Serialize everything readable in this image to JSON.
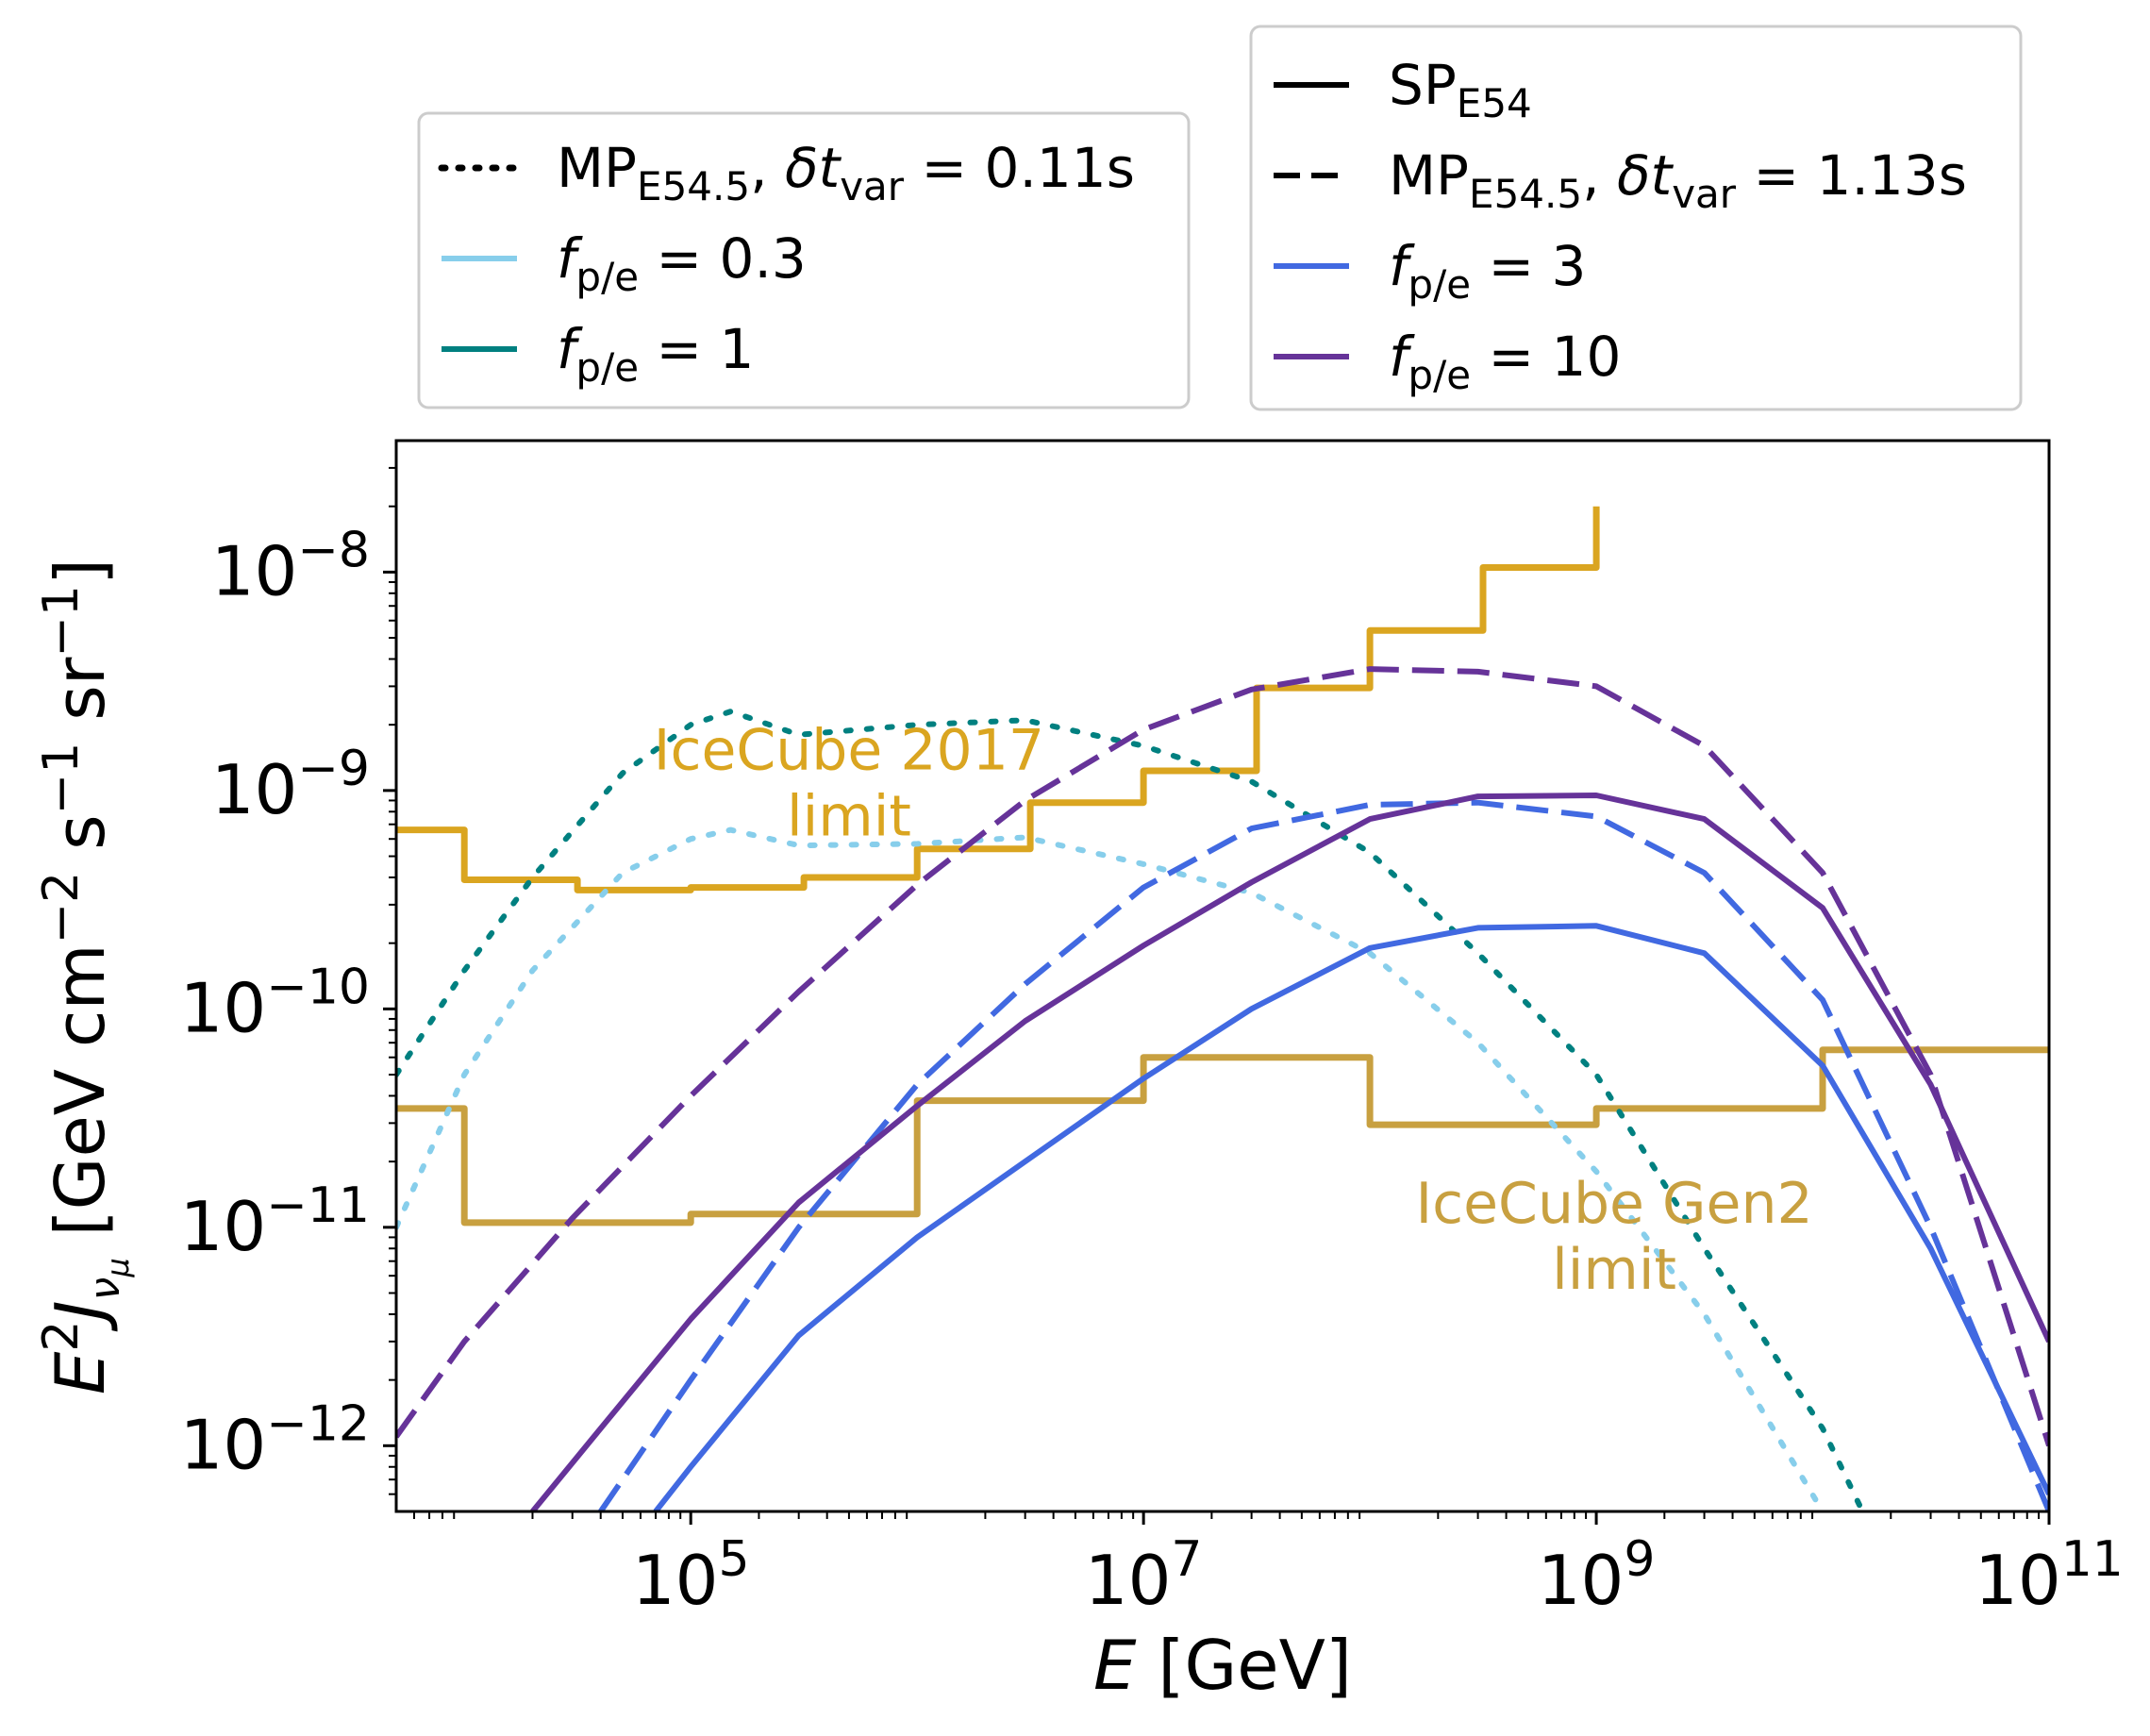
{
  "chart_data": {
    "type": "line",
    "xscale": "log",
    "yscale": "log",
    "xlim": [
      5000,
      100000000000
    ],
    "ylim": [
      5e-13,
      4e-08
    ],
    "xticks": [
      {
        "value": 100000,
        "base": "10",
        "exp": "5"
      },
      {
        "value": 10000000,
        "base": "10",
        "exp": "7"
      },
      {
        "value": 1000000000,
        "base": "10",
        "exp": "9"
      },
      {
        "value": 100000000000,
        "base": "10",
        "exp": "11"
      }
    ],
    "yticks": [
      {
        "value": 1e-12,
        "base": "10",
        "exp": "−12"
      },
      {
        "value": 1e-11,
        "base": "10",
        "exp": "−11"
      },
      {
        "value": 1e-10,
        "base": "10",
        "exp": "−10"
      },
      {
        "value": 1e-09,
        "base": "10",
        "exp": "−9"
      },
      {
        "value": 1e-08,
        "base": "10",
        "exp": "−8"
      }
    ],
    "xlabel": {
      "var": "E",
      "rest": " [GeV]"
    },
    "ylabel": {
      "E2": "E",
      "two": "2",
      "J": "J",
      "nu": "ν",
      "mu": "μ",
      "rest": " [GeV cm",
      "m2": "−2",
      "s": " s",
      "m1a": "−1",
      "sr": " sr",
      "m1b": "−1",
      "close": "]"
    },
    "grid": false,
    "legend_placement": "above plot, two boxes",
    "legends": {
      "left": [
        {
          "style": "dotted",
          "color": "#000000",
          "base": "MP",
          "sub": "E54.5",
          "tail": ", ",
          "delta": "δt",
          "dsub": "var",
          "eq": " = 0.11s"
        },
        {
          "style": "solid",
          "color": "#87ceeb",
          "f": "f",
          "fsub": "p/e",
          "eq": " = 0.3"
        },
        {
          "style": "solid",
          "color": "#008080",
          "f": "f",
          "fsub": "p/e",
          "eq": " = 1"
        }
      ],
      "right": [
        {
          "style": "solid",
          "color": "#000000",
          "base": "SP",
          "sub": "E54"
        },
        {
          "style": "dashed",
          "color": "#000000",
          "base": "MP",
          "sub": "E54.5",
          "tail": ", ",
          "delta": "δt",
          "dsub": "var",
          "eq": " = 1.13s"
        },
        {
          "style": "solid",
          "color": "#4169e1",
          "f": "f",
          "fsub": "p/e",
          "eq": " = 3"
        },
        {
          "style": "solid",
          "color": "#663399",
          "f": "f",
          "fsub": "p/e",
          "eq": " = 10"
        }
      ]
    },
    "annotations": [
      {
        "lines": [
          "IceCube 2017",
          "limit"
        ],
        "color": "#daa520",
        "x": 500000,
        "y": 1.25e-09
      },
      {
        "lines": [
          "IceCube Gen2",
          "limit"
        ],
        "color": "#c8a040",
        "x": 1200000000,
        "y": 1.05e-11
      }
    ],
    "series": [
      {
        "key": "icecube2017",
        "color": "#daa520",
        "dash": "solid",
        "width": 7,
        "step": true,
        "edges": [
          5000,
          10000,
          31600,
          100000,
          316000,
          1000000,
          3160000,
          10000000,
          31600000,
          100000000,
          316000000,
          1000000000
        ],
        "values": [
          6.6e-10,
          3.9e-10,
          3.5e-10,
          3.6e-10,
          4e-10,
          5.4e-10,
          8.8e-10,
          1.23e-09,
          2.95e-09,
          5.4e-09,
          1.05e-08,
          2e-08
        ]
      },
      {
        "key": "gen2",
        "color": "#c8a040",
        "dash": "solid",
        "width": 7,
        "step": true,
        "edges": [
          5000,
          10000,
          100000,
          1000000,
          10000000,
          100000000,
          1000000000,
          10000000000,
          100000000000
        ],
        "values": [
          3.5e-11,
          1.05e-11,
          1.15e-11,
          3.8e-11,
          6e-11,
          2.95e-11,
          3.5e-11,
          6.5e-11
        ]
      },
      {
        "key": "mp011_fpe03",
        "color": "#87ceeb",
        "dash": "dotted",
        "x": [
          5000,
          10000,
          20000,
          50000,
          100000,
          150000,
          300000,
          1000000,
          3000000,
          10000000,
          30000000,
          100000000,
          300000000,
          1000000000,
          3000000000,
          10000000000
        ],
        "y": [
          1e-11,
          5e-11,
          1.5e-10,
          4.2e-10,
          6e-10,
          6.6e-10,
          5.6e-10,
          5.7e-10,
          6.1e-10,
          4.6e-10,
          3.4e-10,
          1.8e-10,
          7e-11,
          1.8e-11,
          4e-12,
          5e-13
        ]
      },
      {
        "key": "mp011_fpe1",
        "color": "#008080",
        "dash": "dotted",
        "x": [
          5000,
          10000,
          20000,
          50000,
          100000,
          150000,
          300000,
          1000000,
          3000000,
          10000000,
          30000000,
          100000000,
          300000000,
          1000000000,
          3000000000,
          10000000000,
          15000000000
        ],
        "y": [
          5e-11,
          1.5e-10,
          4e-10,
          1.2e-09,
          2e-09,
          2.3e-09,
          1.8e-09,
          2e-09,
          2.1e-09,
          1.6e-09,
          1.1e-09,
          5.2e-10,
          1.8e-10,
          5e-11,
          8e-12,
          1.2e-12,
          5e-13
        ]
      },
      {
        "key": "mp113_fpe3",
        "color": "#4169e1",
        "dash": "dashed",
        "x": [
          40000,
          100000,
          300000,
          1000000,
          3000000,
          10000000,
          30000000,
          100000000,
          300000000,
          1000000000,
          3000000000,
          10000000000,
          30000000000,
          100000000000
        ],
        "y": [
          5e-13,
          2e-12,
          1e-11,
          4.5e-11,
          1.3e-10,
          3.6e-10,
          6.7e-10,
          8.6e-10,
          8.8e-10,
          7.6e-10,
          4.2e-10,
          1.1e-10,
          1e-11,
          5e-13
        ]
      },
      {
        "key": "mp113_fpe10",
        "color": "#663399",
        "dash": "dashed",
        "x": [
          5000,
          10000,
          30000,
          100000,
          300000,
          1000000,
          3000000,
          10000000,
          30000000,
          100000000,
          300000000,
          1000000000,
          3000000000,
          10000000000,
          30000000000,
          100000000000
        ],
        "y": [
          1.1e-12,
          3e-12,
          1.1e-11,
          4e-11,
          1.2e-10,
          3.7e-10,
          9e-10,
          1.9e-09,
          2.9e-09,
          3.6e-09,
          3.5e-09,
          3e-09,
          1.6e-09,
          4.2e-10,
          5e-11,
          1e-12
        ]
      },
      {
        "key": "sp_fpe3",
        "color": "#4169e1",
        "dash": "solid",
        "x": [
          70000,
          100000,
          300000,
          1000000,
          3000000,
          10000000,
          30000000,
          100000000,
          300000000,
          1000000000,
          3000000000,
          10000000000,
          30000000000,
          100000000000
        ],
        "y": [
          5e-13,
          8e-13,
          3.2e-12,
          9e-12,
          2e-11,
          4.8e-11,
          1e-10,
          1.9e-10,
          2.35e-10,
          2.4e-10,
          1.8e-10,
          5.5e-11,
          8e-12,
          6e-13
        ]
      },
      {
        "key": "sp_fpe10",
        "color": "#663399",
        "dash": "solid",
        "x": [
          20000,
          40000,
          100000,
          300000,
          1000000,
          3000000,
          10000000,
          30000000,
          100000000,
          300000000,
          1000000000,
          3000000000,
          10000000000,
          30000000000,
          100000000000
        ],
        "y": [
          5e-13,
          1.2e-12,
          3.8e-12,
          1.3e-11,
          3.6e-11,
          8.8e-11,
          1.95e-10,
          3.8e-10,
          7.4e-10,
          9.4e-10,
          9.5e-10,
          7.4e-10,
          2.9e-10,
          4.5e-11,
          3e-12
        ]
      }
    ]
  }
}
